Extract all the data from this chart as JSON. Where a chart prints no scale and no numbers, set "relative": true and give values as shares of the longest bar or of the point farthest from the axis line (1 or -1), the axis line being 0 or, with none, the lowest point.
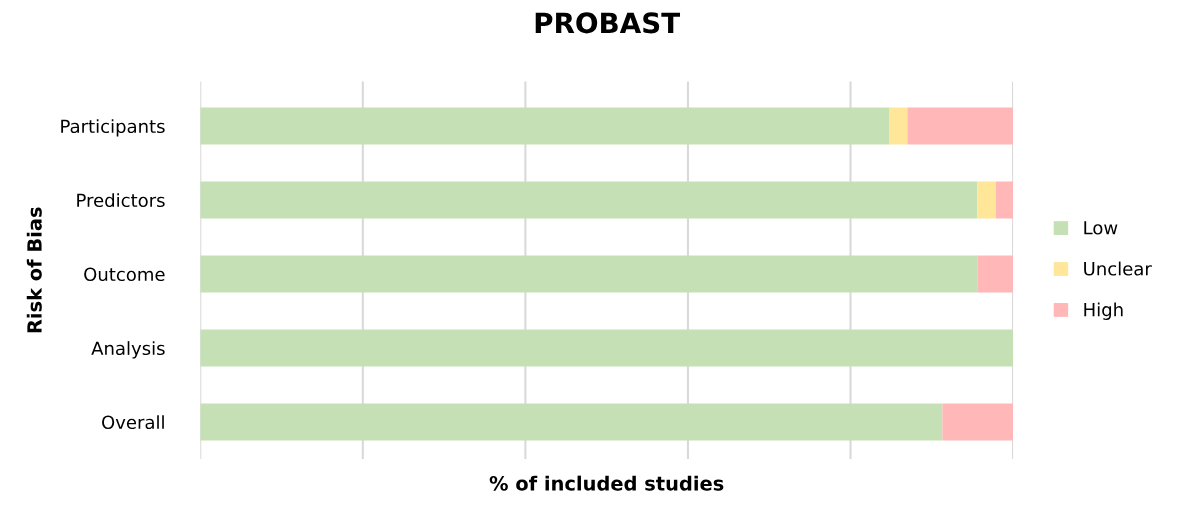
{
  "chart_data": {
    "type": "bar",
    "orientation": "horizontal",
    "stacked": true,
    "relative": true,
    "title": "PROBAST",
    "xlabel": "% of included studies",
    "ylabel": "Risk of Bias",
    "categories": [
      "Participants",
      "Predictors",
      "Outcome",
      "Analysis",
      "Overall"
    ],
    "series": [
      {
        "name": "Low",
        "color": "#c5e0b4",
        "values": [
          0.848,
          0.956,
          0.956,
          1.0,
          0.913
        ]
      },
      {
        "name": "Unclear",
        "color": "#ffe699",
        "values": [
          0.022,
          0.023,
          0,
          0,
          0
        ]
      },
      {
        "name": "High",
        "color": "#ffb7b7",
        "values": [
          0.13,
          0.021,
          0.044,
          0,
          0.087
        ]
      }
    ],
    "grid": "x",
    "legend": "right",
    "tick_labels": "y"
  }
}
